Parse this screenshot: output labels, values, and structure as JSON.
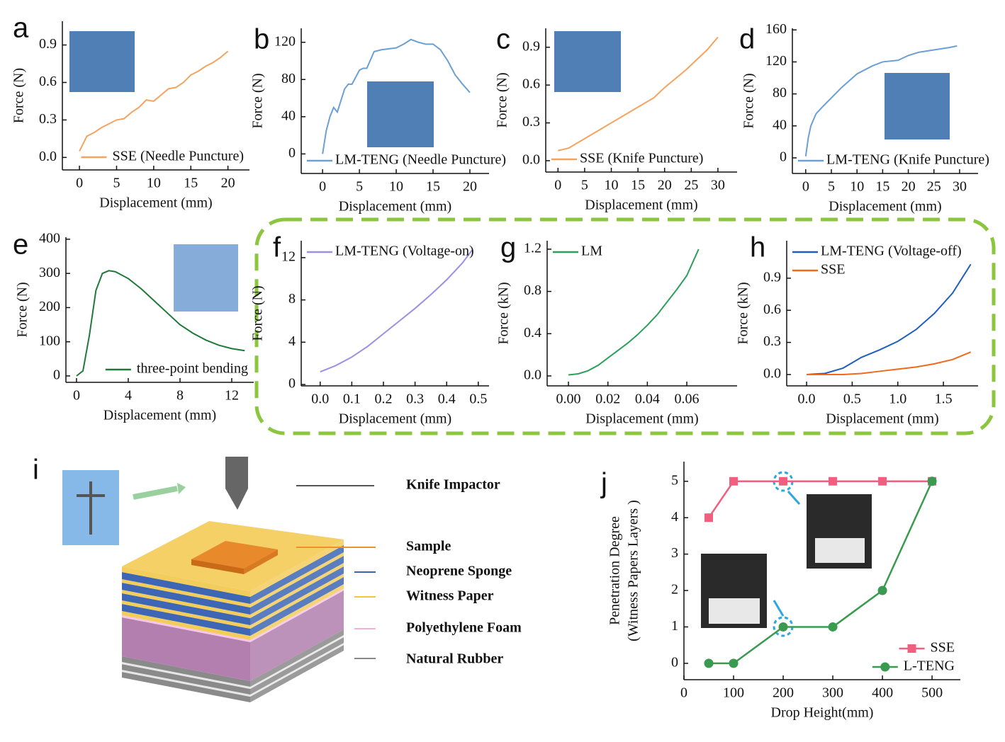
{
  "chart_data": [
    {
      "panel": "a",
      "type": "line",
      "xlabel": "Displacement (mm)",
      "ylabel": "Force (N)",
      "legend": "lower right",
      "x": [
        0,
        1,
        2,
        3,
        4,
        5,
        6,
        7,
        8,
        9,
        10,
        11,
        12,
        13,
        14,
        15,
        16,
        17,
        18,
        19,
        20
      ],
      "series": [
        {
          "name": "SSE (Needle Puncture)",
          "color": "#f5a35e",
          "values": [
            0.05,
            0.17,
            0.2,
            0.24,
            0.27,
            0.3,
            0.31,
            0.36,
            0.4,
            0.46,
            0.45,
            0.5,
            0.55,
            0.56,
            0.6,
            0.66,
            0.69,
            0.73,
            0.76,
            0.8,
            0.85
          ]
        }
      ],
      "xlim": [
        -2.3,
        22.9
      ],
      "xticks": [
        0,
        5,
        10,
        15,
        20
      ],
      "ylim": [
        -0.1,
        1.09
      ],
      "yticks": [
        {
          "value": 0,
          "label": "0.0"
        },
        0.3,
        0.6,
        0.9
      ]
    },
    {
      "panel": "b",
      "type": "line",
      "xlabel": "Displacement (mm)",
      "ylabel": "Force (N)",
      "legend": "lower left",
      "x": [
        0,
        0.5,
        1,
        1.5,
        2,
        3,
        3.5,
        4,
        5,
        5.5,
        6,
        7,
        8,
        10,
        11,
        12,
        13,
        14,
        15,
        16,
        17,
        18,
        19,
        20
      ],
      "series": [
        {
          "name": "LM-TENG (Needle Puncture)",
          "color": "#6c9fd2",
          "values": [
            0,
            25,
            40,
            50,
            45,
            70,
            75,
            75,
            90,
            92,
            92,
            110,
            112,
            114,
            118,
            123,
            120,
            118,
            118,
            112,
            100,
            85,
            75,
            66
          ]
        }
      ],
      "xlim": [
        -2.9,
        22.6
      ],
      "xticks": [
        0,
        5,
        10,
        15,
        20
      ],
      "ylim": [
        -21,
        135
      ],
      "yticks": [
        0,
        40,
        80,
        120
      ]
    },
    {
      "panel": "c",
      "type": "line",
      "xlabel": "Displacement (mm)",
      "ylabel": "Force (N)",
      "legend": "lower left",
      "x": [
        0,
        2,
        4,
        6,
        8,
        10,
        12,
        14,
        16,
        18,
        20,
        22,
        24,
        26,
        28,
        30
      ],
      "series": [
        {
          "name": "SSE (Knife Puncture)",
          "color": "#f5a35e",
          "values": [
            0.08,
            0.1,
            0.15,
            0.2,
            0.25,
            0.3,
            0.35,
            0.4,
            0.45,
            0.5,
            0.58,
            0.65,
            0.72,
            0.8,
            0.88,
            0.98
          ]
        }
      ],
      "xlim": [
        -2.3,
        33.6
      ],
      "xticks": [
        0,
        5,
        10,
        15,
        20,
        25,
        30
      ],
      "ylim": [
        -0.09,
        1.05
      ],
      "yticks": [
        {
          "value": 0,
          "label": "0.0"
        },
        0.3,
        0.6,
        0.9
      ]
    },
    {
      "panel": "d",
      "type": "line",
      "xlabel": "Displacement (mm)",
      "ylabel": "Force (N)",
      "legend": "lower left",
      "x": [
        0,
        0.5,
        1,
        2,
        3,
        5,
        7,
        10,
        13,
        15,
        18,
        20,
        22,
        25,
        28,
        29.5
      ],
      "series": [
        {
          "name": "LM-TENG (Knife Puncture)",
          "color": "#6c9fd2",
          "values": [
            2,
            25,
            40,
            55,
            62,
            75,
            88,
            105,
            115,
            120,
            122,
            128,
            132,
            135,
            138,
            140
          ]
        }
      ],
      "xlim": [
        -2.6,
        33.6
      ],
      "xticks": [
        0,
        5,
        10,
        15,
        20,
        25,
        30
      ],
      "ylim": [
        -19.5,
        162
      ],
      "yticks": [
        0,
        40,
        80,
        120,
        160
      ]
    },
    {
      "panel": "e",
      "type": "line",
      "xlabel": "Displacement (mm)",
      "ylabel": "Force (N)",
      "legend": "lower right",
      "x": [
        0,
        0.5,
        1,
        1.5,
        2,
        2.5,
        3,
        4,
        5,
        6,
        7,
        8,
        9,
        10,
        11,
        12,
        13
      ],
      "series": [
        {
          "name": "three-point bending",
          "color": "#1f7a3a",
          "values": [
            0,
            15,
            120,
            250,
            300,
            308,
            305,
            285,
            255,
            220,
            185,
            150,
            125,
            105,
            90,
            80,
            74
          ]
        }
      ],
      "xlim": [
        -0.82,
        13.7
      ],
      "xticks": [
        0,
        4,
        8,
        12
      ],
      "ylim": [
        -18.7,
        406
      ],
      "yticks": [
        0,
        100,
        200,
        300,
        400
      ]
    },
    {
      "panel": "f",
      "type": "line",
      "xlabel": "Displacement (mm)",
      "ylabel": "Force (N)",
      "legend": "upper left",
      "x": [
        0,
        0.05,
        0.1,
        0.15,
        0.2,
        0.25,
        0.3,
        0.35,
        0.4,
        0.45,
        0.48
      ],
      "series": [
        {
          "name": "LM-TENG (Voltage-on)",
          "color": "#9d8fe3",
          "values": [
            1.2,
            1.8,
            2.6,
            3.6,
            4.8,
            6,
            7.2,
            8.5,
            9.9,
            11.5,
            12.7
          ]
        }
      ],
      "xlim": [
        -0.06,
        0.534
      ],
      "xticks": [
        {
          "value": 0,
          "label": "0.0"
        },
        0.1,
        0.2,
        0.3,
        0.4,
        0.5
      ],
      "ylim": [
        -0.13,
        13.6
      ],
      "yticks": [
        0,
        4,
        8,
        12
      ]
    },
    {
      "panel": "g",
      "type": "line",
      "xlabel": "Displacement (mm)",
      "ylabel": "Force (kN)",
      "legend": "upper left",
      "x": [
        0,
        0.005,
        0.01,
        0.015,
        0.02,
        0.025,
        0.03,
        0.035,
        0.04,
        0.045,
        0.05,
        0.055,
        0.06,
        0.066
      ],
      "series": [
        {
          "name": "LM",
          "color": "#2ca05a",
          "values": [
            0.01,
            0.02,
            0.05,
            0.1,
            0.17,
            0.24,
            0.31,
            0.39,
            0.48,
            0.58,
            0.7,
            0.82,
            0.95,
            1.2
          ]
        }
      ],
      "xlim": [
        -0.0108,
        0.0855
      ],
      "xticks": [
        {
          "value": 0,
          "label": "0.00"
        },
        {
          "value": 0.02,
          "label": "0.02"
        },
        {
          "value": 0.04,
          "label": "0.04"
        },
        {
          "value": 0.06,
          "label": "0.06"
        }
      ],
      "ylim": [
        -0.094,
        1.28
      ],
      "yticks": [
        {
          "value": 0,
          "label": "0.0"
        },
        0.4,
        0.8,
        1.2
      ]
    },
    {
      "panel": "h",
      "type": "line",
      "xlabel": "Displacement (mm)",
      "ylabel": "Force (kN)",
      "legend": "upper left",
      "x": [
        0,
        0.2,
        0.4,
        0.6,
        0.8,
        1.0,
        1.2,
        1.4,
        1.6,
        1.8
      ],
      "series": [
        {
          "name": "LM-TENG (Voltage-off)",
          "color": "#1f5fbf",
          "values": [
            0,
            0.01,
            0.06,
            0.16,
            0.23,
            0.31,
            0.42,
            0.57,
            0.76,
            1.03
          ]
        },
        {
          "name": "SSE",
          "color": "#f06a1a",
          "values": [
            0,
            0,
            0,
            0.01,
            0.03,
            0.05,
            0.07,
            0.1,
            0.14,
            0.21
          ]
        }
      ],
      "xlim": [
        -0.218,
        1.88
      ],
      "xticks": [
        {
          "value": 0,
          "label": "0.0"
        },
        0.5,
        {
          "value": 1,
          "label": "1.0"
        },
        1.5
      ],
      "ylim": [
        -0.106,
        1.25
      ],
      "yticks": [
        {
          "value": 0,
          "label": "0.0"
        },
        0.3,
        0.6,
        0.9
      ]
    },
    {
      "panel": "j",
      "type": "line",
      "xlabel": "Drop Height(mm)",
      "ylabel": [
        "Penetration Degree",
        "(Witness Papers Layers )"
      ],
      "legend": "lower right",
      "x": [
        50,
        100,
        200,
        300,
        400,
        500
      ],
      "series": [
        {
          "name": "SSE",
          "color": "#f0607e",
          "marker": "square",
          "values": [
            4,
            5,
            5,
            5,
            5,
            5
          ]
        },
        {
          "name": "L-TENG",
          "color": "#3a9a50",
          "marker": "circle",
          "values": [
            0,
            0,
            1,
            1,
            2,
            5
          ]
        }
      ],
      "xlim": [
        0,
        557
      ],
      "xticks": [
        0,
        100,
        200,
        300,
        400,
        500
      ],
      "ylim": [
        -0.45,
        5.54
      ],
      "yticks": [
        0,
        1,
        2,
        3,
        4,
        5
      ]
    }
  ],
  "diagram": {
    "panel": "i",
    "labels": [
      "Knife Impactor",
      "Sample",
      "Neoprene Sponge",
      "Witness Paper",
      "Polyethylene Foam",
      "Natural Rubber"
    ]
  }
}
